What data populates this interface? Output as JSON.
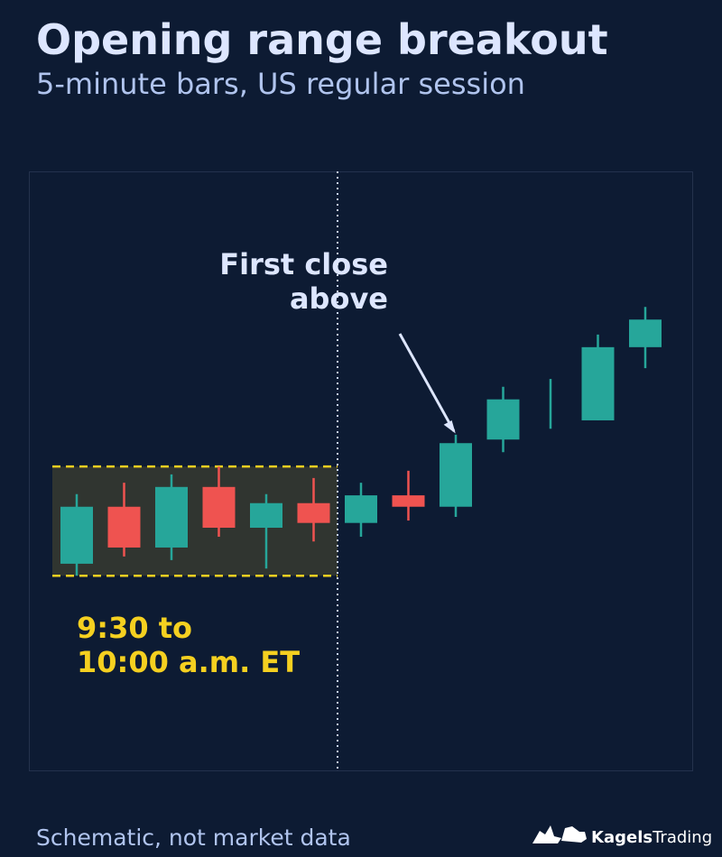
{
  "chart_data": {
    "type": "candlestick",
    "title": "Opening range breakout",
    "subtitle": "5-minute bars, US regular session",
    "ylim": [
      0,
      100
    ],
    "up_color": "#26a69a",
    "down_color": "#ef5350",
    "open": [
      34.6,
      44.1,
      37.3,
      47.4,
      40.6,
      44.7,
      41.4,
      46.0,
      44.1,
      55.3,
      60.0,
      58.5,
      70.7
    ],
    "high": [
      46.2,
      48.1,
      49.5,
      50.8,
      46.2,
      48.9,
      48.1,
      50.1,
      56.1,
      64.1,
      65.4,
      72.8,
      77.4
    ],
    "low": [
      32.6,
      35.8,
      35.2,
      39.1,
      33.8,
      38.3,
      39.1,
      41.8,
      42.4,
      53.2,
      57.1,
      58.5,
      67.2
    ],
    "close": [
      44.1,
      37.3,
      47.4,
      40.6,
      44.7,
      41.4,
      46.0,
      44.1,
      54.7,
      62.0,
      60.0,
      70.7,
      75.3
    ],
    "opening_range": {
      "high": 50.8,
      "low": 32.6,
      "color": "#f5d020",
      "label": [
        "9:30 to",
        "10:00 a.m. ET"
      ]
    },
    "annotation": {
      "text": [
        "First close",
        "above"
      ],
      "index": 8
    },
    "footnote": "Schematic, not market data"
  },
  "brand": [
    "Kagels",
    "Trading"
  ]
}
